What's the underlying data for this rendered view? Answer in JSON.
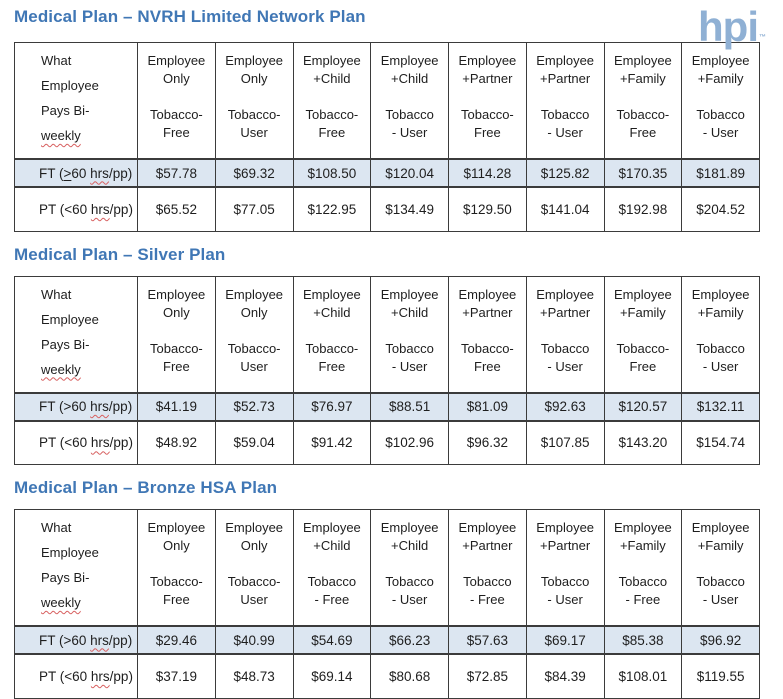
{
  "logo": {
    "text": "hpi",
    "trademark": "™"
  },
  "colors": {
    "title": "#4077b5",
    "logo": "#8fb0d4",
    "ft_row_bg": "#dce6f1",
    "border": "#3b3b3b",
    "squiggle": "#d75f5f"
  },
  "tables": [
    {
      "title": "Medical Plan – NVRH Limited Network Plan",
      "corner_lines": [
        [
          {
            "t": "What"
          }
        ],
        [
          {
            "t": "Employee"
          }
        ],
        [
          {
            "t": "Pays Bi-"
          }
        ],
        [
          {
            "t": "weekly",
            "sq": true
          }
        ]
      ],
      "column_headers": [
        [
          "Employee",
          "Only",
          "",
          "Tobacco-",
          "Free"
        ],
        [
          "Employee",
          "Only",
          "",
          "Tobacco-",
          "User"
        ],
        [
          "Employee",
          "+Child",
          "",
          "Tobacco-",
          "Free"
        ],
        [
          "Employee",
          "+Child",
          "",
          "Tobacco",
          "- User"
        ],
        [
          "Employee",
          "+Partner",
          "",
          "Tobacco-",
          "Free"
        ],
        [
          "Employee",
          "+Partner",
          "",
          "Tobacco",
          "- User"
        ],
        [
          "Employee",
          "+Family",
          "",
          "Tobacco-",
          "Free"
        ],
        [
          "Employee",
          "+Family",
          "",
          "Tobacco",
          "- User"
        ]
      ],
      "rows": [
        {
          "highlight": true,
          "label_parts": [
            {
              "t": "FT ("
            },
            {
              "t": ">",
              "u": true
            },
            {
              "t": "60 "
            },
            {
              "t": "hrs",
              "sq": true
            },
            {
              "t": "/pp)"
            }
          ],
          "values": [
            "$57.78",
            "$69.32",
            "$108.50",
            "$120.04",
            "$114.28",
            "$125.82",
            "$170.35",
            "$181.89"
          ]
        },
        {
          "highlight": false,
          "label_parts": [
            {
              "t": "PT (<60 "
            },
            {
              "t": "hrs",
              "sq": true
            },
            {
              "t": "/pp)"
            }
          ],
          "values": [
            "$65.52",
            "$77.05",
            "$122.95",
            "$134.49",
            "$129.50",
            "$141.04",
            "$192.98",
            "$204.52"
          ]
        }
      ]
    },
    {
      "title": "Medical Plan – Silver Plan",
      "corner_lines": [
        [
          {
            "t": "What"
          }
        ],
        [
          {
            "t": "Employee"
          }
        ],
        [
          {
            "t": "Pays Bi-"
          }
        ],
        [
          {
            "t": "weekly",
            "sq": true
          }
        ]
      ],
      "column_headers": [
        [
          "Employee",
          "Only",
          "",
          "Tobacco-",
          "Free"
        ],
        [
          "Employee",
          "Only",
          "",
          "Tobacco-",
          "User"
        ],
        [
          "Employee",
          "+Child",
          "",
          "Tobacco-",
          "Free"
        ],
        [
          "Employee",
          "+Child",
          "",
          "Tobacco",
          "- User"
        ],
        [
          "Employee",
          "+Partner",
          "",
          "Tobacco-",
          "Free"
        ],
        [
          "Employee",
          "+Partner",
          "",
          "Tobacco",
          "- User"
        ],
        [
          "Employee",
          "+Family",
          "",
          "Tobacco-",
          "Free"
        ],
        [
          "Employee",
          "+Family",
          "",
          "Tobacco",
          "- User"
        ]
      ],
      "rows": [
        {
          "highlight": true,
          "label_parts": [
            {
              "t": "FT (>60 "
            },
            {
              "t": "hrs",
              "sq": true
            },
            {
              "t": "/pp)"
            }
          ],
          "values": [
            "$41.19",
            "$52.73",
            "$76.97",
            "$88.51",
            "$81.09",
            "$92.63",
            "$120.57",
            "$132.11"
          ]
        },
        {
          "highlight": false,
          "label_parts": [
            {
              "t": "PT (<60 "
            },
            {
              "t": "hrs",
              "sq": true
            },
            {
              "t": "/pp)"
            }
          ],
          "values": [
            "$48.92",
            "$59.04",
            "$91.42",
            "$102.96",
            "$96.32",
            "$107.85",
            "$143.20",
            "$154.74"
          ]
        }
      ]
    },
    {
      "title": "Medical Plan – Bronze HSA Plan",
      "corner_lines": [
        [
          {
            "t": "What"
          }
        ],
        [
          {
            "t": "Employee"
          }
        ],
        [
          {
            "t": "Pays Bi-"
          }
        ],
        [
          {
            "t": "weekly",
            "sq": true
          }
        ]
      ],
      "column_headers": [
        [
          "Employee",
          "Only",
          "",
          "Tobacco-",
          "Free"
        ],
        [
          "Employee",
          "Only",
          "",
          "Tobacco-",
          "User"
        ],
        [
          "Employee",
          "+Child",
          "",
          "Tobacco",
          "- Free"
        ],
        [
          "Employee",
          "+Child",
          "",
          "Tobacco",
          "- User"
        ],
        [
          "Employee",
          "+Partner",
          "",
          "Tobacco",
          "- Free"
        ],
        [
          "Employee",
          "+Partner",
          "",
          "Tobacco",
          "- User"
        ],
        [
          "Employee",
          "+Family",
          "",
          "Tobacco",
          "- Free"
        ],
        [
          "Employee",
          "+Family",
          "",
          "Tobacco",
          "- User"
        ]
      ],
      "rows": [
        {
          "highlight": true,
          "label_parts": [
            {
              "t": "FT (>60 "
            },
            {
              "t": "hrs",
              "sq": true
            },
            {
              "t": "/pp)"
            }
          ],
          "values": [
            "$29.46",
            "$40.99",
            "$54.69",
            "$66.23",
            "$57.63",
            "$69.17",
            "$85.38",
            "$96.92"
          ]
        },
        {
          "highlight": false,
          "label_parts": [
            {
              "t": "PT (<60 "
            },
            {
              "t": "hrs",
              "sq": true
            },
            {
              "t": "/pp)"
            }
          ],
          "values": [
            "$37.19",
            "$48.73",
            "$69.14",
            "$80.68",
            "$72.85",
            "$84.39",
            "$108.01",
            "$119.55"
          ]
        }
      ]
    }
  ]
}
